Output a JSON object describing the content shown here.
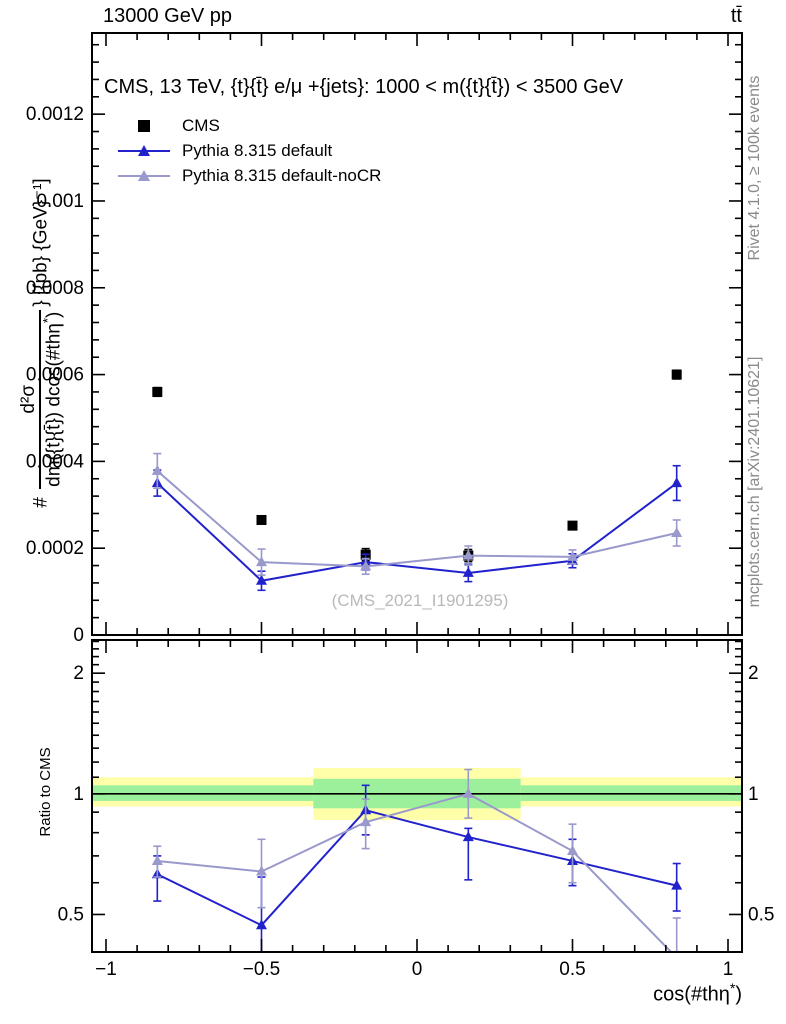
{
  "header": {
    "left": "13000 GeV pp",
    "right": "tt̄"
  },
  "side_text": {
    "rivet": "Rivet 4.1.0, ≥ 100k events",
    "mcplots": "mcplots.cern.ch [arXiv:2401.10621]"
  },
  "watermark": "(CMS_2021_I1901295)",
  "main_panel": {
    "title": "CMS, 13 TeV, {t}{t̄} e/μ +{jets}: 1000 < m({t}{t̄}) < 3500 GeV",
    "ylabel": {
      "prefix": "# ",
      "frac_num": "d²σ",
      "frac_den_main": "dm({t}{t̄}) dcos(#thη",
      "frac_den_sup": "*",
      "frac_den_close": ")",
      "suffix": "} [{pb} {GeV}⁻¹]"
    }
  },
  "ratio_panel": {
    "ylabel": "Ratio to CMS"
  },
  "xlabel": {
    "main": "cos(#thη",
    "sup": "*",
    "close": ")"
  },
  "legend": [
    {
      "label": "CMS",
      "marker": "square",
      "color": "#000000"
    },
    {
      "label": "Pythia 8.315 default",
      "marker": "triangle-line",
      "color": "#2222cc"
    },
    {
      "label": "Pythia 8.315 default-noCR",
      "marker": "triangle-line",
      "color": "#9999cc"
    }
  ],
  "colors": {
    "blue": "#2222cc",
    "gray": "#9999cc",
    "band_yellow": "#ffffaa",
    "band_green": "#9cf09c"
  },
  "chart_data": [
    {
      "type": "scatter",
      "panel": "main",
      "title": "CMS, 13 TeV, tt e/mu +jets: 1000 < m(tt) < 3500 GeV",
      "xlabel": "cos(theta*)",
      "ylabel": "d2sigma/dm(tt)dcos(theta*) [pb GeV^-1]",
      "xlim": [
        -1.045,
        1.045
      ],
      "ylim": [
        0,
        0.001387
      ],
      "grid": false,
      "legend_position": "top-left",
      "x": [
        -0.835,
        -0.5,
        -0.165,
        0.165,
        0.5,
        0.835
      ],
      "series": [
        {
          "name": "CMS",
          "marker": "square",
          "line": false,
          "color": "#000000",
          "values": [
            0.00056,
            0.000265,
            0.000185,
            0.000183,
            0.000252,
            0.0006
          ],
          "errors": [
            1e-05,
            8e-06,
            1.4e-05,
            1.4e-05,
            8e-06,
            1e-05
          ]
        },
        {
          "name": "Pythia 8.315 default",
          "marker": "triangle",
          "line": true,
          "color": "#2222cc",
          "values": [
            0.00035,
            0.000125,
            0.000168,
            0.000143,
            0.000171,
            0.00035
          ],
          "errors": [
            3e-05,
            2.2e-05,
            1.8e-05,
            2e-05,
            1.6e-05,
            4e-05
          ]
        },
        {
          "name": "Pythia 8.315 default-noCR",
          "marker": "triangle",
          "line": true,
          "color": "#9999cc",
          "values": [
            0.000378,
            0.000168,
            0.000158,
            0.000183,
            0.00018,
            0.000235
          ],
          "errors": [
            4e-05,
            3e-05,
            1.8e-05,
            2.2e-05,
            1.6e-05,
            3e-05
          ]
        }
      ],
      "ytick_labels": [
        {
          "v": 0,
          "t": "0"
        },
        {
          "v": 0.0002,
          "t": "0.0002"
        },
        {
          "v": 0.0004,
          "t": "0.0004"
        },
        {
          "v": 0.0006,
          "t": "0.0006"
        },
        {
          "v": 0.0008,
          "t": "0.0008"
        },
        {
          "v": 0.001,
          "t": "0.001"
        },
        {
          "v": 0.0012,
          "t": "0.0012"
        }
      ]
    },
    {
      "type": "line",
      "panel": "ratio",
      "ylabel": "Ratio to CMS",
      "yscale": "log",
      "xlim": [
        -1.045,
        1.045
      ],
      "ylim": [
        0.403,
        2.42
      ],
      "reference_line": 1.0,
      "x": [
        -0.835,
        -0.5,
        -0.165,
        0.165,
        0.5,
        0.835
      ],
      "series": [
        {
          "name": "Pythia 8.315 default",
          "marker": "triangle",
          "color": "#2222cc",
          "values": [
            0.63,
            0.47,
            0.91,
            0.78,
            0.68,
            0.59
          ],
          "errors_up": [
            0.07,
            0.15,
            0.14,
            0.04,
            0.09,
            0.08
          ],
          "errors_down": [
            0.09,
            0.15,
            0.12,
            0.17,
            0.09,
            0.08
          ]
        },
        {
          "name": "Pythia 8.315 default-noCR",
          "marker": "triangle",
          "color": "#9999cc",
          "values": [
            0.68,
            0.64,
            0.85,
            1.0,
            0.72,
            0.39
          ],
          "errors_up": [
            0.06,
            0.13,
            0.12,
            0.15,
            0.12,
            0.1
          ],
          "errors_down": [
            0.06,
            0.12,
            0.12,
            0.13,
            0.12,
            0.1
          ]
        }
      ],
      "bands": [
        {
          "x0": -1.045,
          "x1": -0.3333,
          "yellow": [
            0.93,
            1.1
          ],
          "green": [
            0.96,
            1.05
          ]
        },
        {
          "x0": -0.3333,
          "x1": 0.3333,
          "yellow": [
            0.86,
            1.16
          ],
          "green": [
            0.92,
            1.09
          ]
        },
        {
          "x0": 0.3333,
          "x1": 1.045,
          "yellow": [
            0.93,
            1.1
          ],
          "green": [
            0.96,
            1.05
          ]
        }
      ],
      "ytick_labels": [
        {
          "v": 0.5,
          "t": "0.5"
        },
        {
          "v": 1,
          "t": "1"
        },
        {
          "v": 2,
          "t": "2"
        }
      ],
      "xtick_labels": [
        {
          "v": -1,
          "t": "−1"
        },
        {
          "v": -0.5,
          "t": "−0.5"
        },
        {
          "v": 0,
          "t": "0"
        },
        {
          "v": 0.5,
          "t": "0.5"
        },
        {
          "v": 1,
          "t": "1"
        }
      ]
    }
  ]
}
